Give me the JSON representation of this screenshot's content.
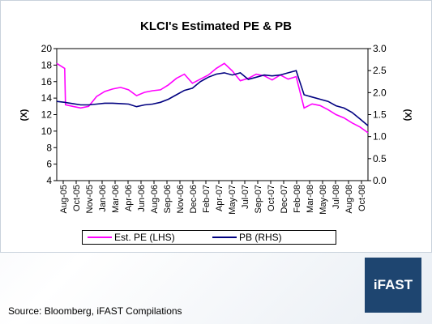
{
  "chart_data": {
    "type": "line",
    "title": "KLCI's Estimated PE & PB",
    "y_left": {
      "label": "(X)",
      "min": 4,
      "max": 20,
      "ticks": [
        4,
        6,
        8,
        10,
        12,
        14,
        16,
        18,
        20
      ]
    },
    "y_right": {
      "label": "(X)",
      "min": 0.0,
      "max": 3.0,
      "ticks": [
        "0.0",
        "0.5",
        "1.0",
        "1.5",
        "2.0",
        "2.5",
        "3.0"
      ]
    },
    "x_tick_labels": [
      "Aug-05",
      "Oct-05",
      "Nov-05",
      "Jan-06",
      "Mar-06",
      "Apr-06",
      "Jun-06",
      "Aug-06",
      "Sep-06",
      "Nov-06",
      "Dec-06",
      "Feb-07",
      "Apr-07",
      "May-07",
      "Jul-07",
      "Sep-07",
      "Oct-07",
      "Dec-07",
      "Feb-08",
      "Mar-08",
      "May-08",
      "Jul-08",
      "Aug-08",
      "Oct-08"
    ],
    "grid": false,
    "legend_position": "bottom",
    "series": [
      {
        "name": "Est. PE (LHS)",
        "axis": "left",
        "color": "#ff00ff",
        "x": [
          "Aug-05",
          "Sep-05",
          "Sep-05",
          "Oct-05",
          "Nov-05",
          "Dec-05",
          "Jan-06",
          "Feb-06",
          "Mar-06",
          "Apr-06",
          "May-06",
          "Jun-06",
          "Jul-06",
          "Aug-06",
          "Sep-06",
          "Oct-06",
          "Nov-06",
          "Dec-06",
          "Jan-07",
          "Feb-07",
          "Mar-07",
          "Apr-07",
          "May-07",
          "Jun-07",
          "Jul-07",
          "Aug-07",
          "Sep-07",
          "Oct-07",
          "Nov-07",
          "Dec-07",
          "Jan-08",
          "Feb-08",
          "Mar-08",
          "Apr-08",
          "May-08",
          "Jun-08",
          "Jul-08",
          "Aug-08",
          "Sep-08",
          "Oct-08",
          "Nov-08"
        ],
        "y": [
          18.2,
          17.6,
          13.2,
          13.0,
          12.8,
          13.0,
          14.2,
          14.8,
          15.1,
          15.3,
          15.0,
          14.3,
          14.7,
          14.9,
          15.0,
          15.6,
          16.4,
          16.9,
          15.8,
          16.3,
          16.8,
          17.6,
          18.2,
          17.3,
          16.1,
          16.4,
          16.9,
          16.7,
          16.2,
          16.8,
          16.3,
          16.6,
          12.8,
          13.3,
          13.1,
          12.6,
          12.0,
          11.6,
          11.0,
          10.5,
          9.8
        ]
      },
      {
        "name": "PB (RHS)",
        "axis": "right",
        "color": "#000080",
        "x": [
          "Aug-05",
          "Sep-05",
          "Oct-05",
          "Nov-05",
          "Dec-05",
          "Jan-06",
          "Feb-06",
          "Mar-06",
          "Apr-06",
          "May-06",
          "Jun-06",
          "Jul-06",
          "Aug-06",
          "Sep-06",
          "Oct-06",
          "Nov-06",
          "Dec-06",
          "Jan-07",
          "Feb-07",
          "Mar-07",
          "Apr-07",
          "May-07",
          "Jun-07",
          "Jul-07",
          "Aug-07",
          "Sep-07",
          "Oct-07",
          "Nov-07",
          "Dec-07",
          "Jan-08",
          "Feb-08",
          "Mar-08",
          "Apr-08",
          "May-08",
          "Jun-08",
          "Jul-08",
          "Aug-08",
          "Sep-08",
          "Oct-08",
          "Nov-08"
        ],
        "y": [
          1.8,
          1.78,
          1.75,
          1.72,
          1.72,
          1.74,
          1.76,
          1.76,
          1.75,
          1.74,
          1.68,
          1.72,
          1.74,
          1.78,
          1.85,
          1.95,
          2.05,
          2.1,
          2.25,
          2.35,
          2.42,
          2.45,
          2.4,
          2.45,
          2.3,
          2.35,
          2.4,
          2.38,
          2.4,
          2.45,
          2.5,
          1.95,
          1.9,
          1.85,
          1.8,
          1.7,
          1.65,
          1.55,
          1.4,
          1.25
        ]
      }
    ]
  },
  "legend": {
    "pe_label": "Est. PE (LHS)",
    "pb_label": "PB (RHS)"
  },
  "source": "Source: Bloomberg, iFAST Compilations",
  "logo": "iFAST"
}
